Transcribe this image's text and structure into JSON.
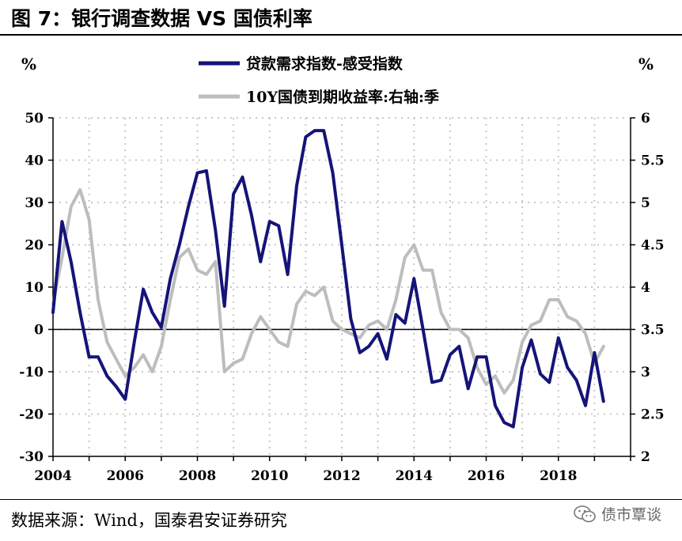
{
  "title": "图 7：银行调查数据 VS 国债利率",
  "source": "数据来源：Wind，国泰君安证券研究",
  "watermark": "债市覃谈",
  "chart_data": {
    "type": "line",
    "left_unit": "%",
    "right_unit": "%",
    "y_left": {
      "lim": [
        -30,
        50
      ],
      "ticks": [
        -30,
        -20,
        -10,
        0,
        10,
        20,
        30,
        40,
        50
      ]
    },
    "y_right": {
      "lim": [
        2,
        6
      ],
      "ticks": [
        2,
        2.5,
        3,
        3.5,
        4,
        4.5,
        5,
        5.5,
        6
      ]
    },
    "x": {
      "lim": [
        2004,
        2020
      ],
      "ticks": [
        2004,
        2006,
        2008,
        2010,
        2012,
        2014,
        2016,
        2018
      ]
    },
    "grid": true,
    "legend_position": "top-center",
    "series": [
      {
        "name": "贷款需求指数-感受指数",
        "axis": "left",
        "color": "#141478",
        "points": [
          [
            2004.0,
            4
          ],
          [
            2004.25,
            25.5
          ],
          [
            2004.5,
            16
          ],
          [
            2004.75,
            4
          ],
          [
            2005.0,
            -6.5
          ],
          [
            2005.25,
            -6.5
          ],
          [
            2005.5,
            -11
          ],
          [
            2005.75,
            -13.5
          ],
          [
            2006.0,
            -16.5
          ],
          [
            2006.25,
            -3
          ],
          [
            2006.5,
            9.5
          ],
          [
            2006.75,
            4
          ],
          [
            2007.0,
            0.5
          ],
          [
            2007.25,
            12
          ],
          [
            2007.5,
            20
          ],
          [
            2007.75,
            29
          ],
          [
            2008.0,
            37
          ],
          [
            2008.25,
            37.5
          ],
          [
            2008.5,
            23.5
          ],
          [
            2008.75,
            5.5
          ],
          [
            2009.0,
            32
          ],
          [
            2009.25,
            36
          ],
          [
            2009.5,
            27
          ],
          [
            2009.75,
            16
          ],
          [
            2010.0,
            25.5
          ],
          [
            2010.25,
            24.5
          ],
          [
            2010.5,
            13
          ],
          [
            2010.75,
            34
          ],
          [
            2011.0,
            45.5
          ],
          [
            2011.25,
            47
          ],
          [
            2011.5,
            47
          ],
          [
            2011.75,
            37
          ],
          [
            2012.0,
            20
          ],
          [
            2012.25,
            2.5
          ],
          [
            2012.5,
            -5.5
          ],
          [
            2012.75,
            -4
          ],
          [
            2013.0,
            -1
          ],
          [
            2013.25,
            -7
          ],
          [
            2013.5,
            3.5
          ],
          [
            2013.75,
            1.5
          ],
          [
            2014.0,
            12
          ],
          [
            2014.25,
            0
          ],
          [
            2014.5,
            -12.5
          ],
          [
            2014.75,
            -12
          ],
          [
            2015.0,
            -6
          ],
          [
            2015.25,
            -4
          ],
          [
            2015.5,
            -14
          ],
          [
            2015.75,
            -6.5
          ],
          [
            2016.0,
            -6.5
          ],
          [
            2016.25,
            -18
          ],
          [
            2016.5,
            -22
          ],
          [
            2016.75,
            -23
          ],
          [
            2017.0,
            -9
          ],
          [
            2017.25,
            -2.5
          ],
          [
            2017.5,
            -10.5
          ],
          [
            2017.75,
            -12.5
          ],
          [
            2018.0,
            -2
          ],
          [
            2018.25,
            -9
          ],
          [
            2018.5,
            -12
          ],
          [
            2018.75,
            -18
          ],
          [
            2019.0,
            -5.5
          ],
          [
            2019.25,
            -17
          ]
        ]
      },
      {
        "name": "10Y国债到期收益率:右轴:季",
        "axis": "right",
        "color": "#bdbdbd",
        "points": [
          [
            2004.0,
            3.8
          ],
          [
            2004.25,
            4.35
          ],
          [
            2004.5,
            4.95
          ],
          [
            2004.75,
            5.15
          ],
          [
            2005.0,
            4.8
          ],
          [
            2005.25,
            3.85
          ],
          [
            2005.5,
            3.35
          ],
          [
            2005.75,
            3.15
          ],
          [
            2006.0,
            2.95
          ],
          [
            2006.25,
            3.05
          ],
          [
            2006.5,
            3.2
          ],
          [
            2006.75,
            3.0
          ],
          [
            2007.0,
            3.3
          ],
          [
            2007.25,
            3.85
          ],
          [
            2007.5,
            4.35
          ],
          [
            2007.75,
            4.45
          ],
          [
            2008.0,
            4.2
          ],
          [
            2008.25,
            4.15
          ],
          [
            2008.5,
            4.3
          ],
          [
            2008.75,
            3.0
          ],
          [
            2009.0,
            3.1
          ],
          [
            2009.25,
            3.15
          ],
          [
            2009.5,
            3.45
          ],
          [
            2009.75,
            3.65
          ],
          [
            2010.0,
            3.5
          ],
          [
            2010.25,
            3.35
          ],
          [
            2010.5,
            3.3
          ],
          [
            2010.75,
            3.8
          ],
          [
            2011.0,
            3.95
          ],
          [
            2011.25,
            3.9
          ],
          [
            2011.5,
            4.0
          ],
          [
            2011.75,
            3.6
          ],
          [
            2012.0,
            3.5
          ],
          [
            2012.25,
            3.45
          ],
          [
            2012.5,
            3.4
          ],
          [
            2012.75,
            3.55
          ],
          [
            2013.0,
            3.6
          ],
          [
            2013.25,
            3.5
          ],
          [
            2013.5,
            3.85
          ],
          [
            2013.75,
            4.35
          ],
          [
            2014.0,
            4.5
          ],
          [
            2014.25,
            4.2
          ],
          [
            2014.5,
            4.2
          ],
          [
            2014.75,
            3.7
          ],
          [
            2015.0,
            3.5
          ],
          [
            2015.25,
            3.5
          ],
          [
            2015.5,
            3.4
          ],
          [
            2015.75,
            3.05
          ],
          [
            2016.0,
            2.85
          ],
          [
            2016.25,
            2.95
          ],
          [
            2016.5,
            2.75
          ],
          [
            2016.75,
            2.9
          ],
          [
            2017.0,
            3.35
          ],
          [
            2017.25,
            3.55
          ],
          [
            2017.5,
            3.6
          ],
          [
            2017.75,
            3.85
          ],
          [
            2018.0,
            3.85
          ],
          [
            2018.25,
            3.65
          ],
          [
            2018.5,
            3.6
          ],
          [
            2018.75,
            3.45
          ],
          [
            2019.0,
            3.1
          ],
          [
            2019.25,
            3.3
          ]
        ]
      }
    ]
  }
}
